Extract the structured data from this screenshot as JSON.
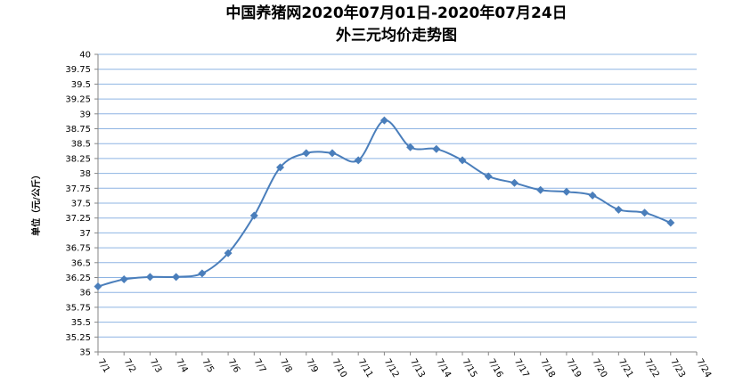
{
  "chart_data": {
    "type": "line",
    "title": "中国养猪网2020年07月01日-2020年07月24日",
    "subtitle": "外三元均价走势图",
    "y_label": "单位（元/公斤）",
    "categories": [
      "7/1",
      "7/2",
      "7/3",
      "7/4",
      "7/5",
      "7/6",
      "7/7",
      "7/8",
      "7/9",
      "7/10",
      "7/11",
      "7/12",
      "7/13",
      "7/14",
      "7/15",
      "7/16",
      "7/17",
      "7/18",
      "7/19",
      "7/20",
      "7/21",
      "7/22",
      "7/23",
      "7/24"
    ],
    "series": [
      {
        "name": "外三元",
        "color": "#4a7ebb",
        "values": [
          36.1,
          36.22,
          36.26,
          36.26,
          36.32,
          36.66,
          37.29,
          38.1,
          38.34,
          38.34,
          38.22,
          38.89,
          38.44,
          38.41,
          38.22,
          37.95,
          37.84,
          37.72,
          37.69,
          37.63,
          37.39,
          37.34,
          37.17,
          null
        ]
      }
    ],
    "ylim": [
      35,
      40
    ],
    "yticks": [
      35,
      35.25,
      35.5,
      35.75,
      36,
      36.25,
      36.5,
      36.75,
      37,
      37.25,
      37.5,
      37.75,
      38,
      38.25,
      38.5,
      38.75,
      39,
      39.25,
      39.5,
      39.75,
      40
    ],
    "grid": true
  }
}
